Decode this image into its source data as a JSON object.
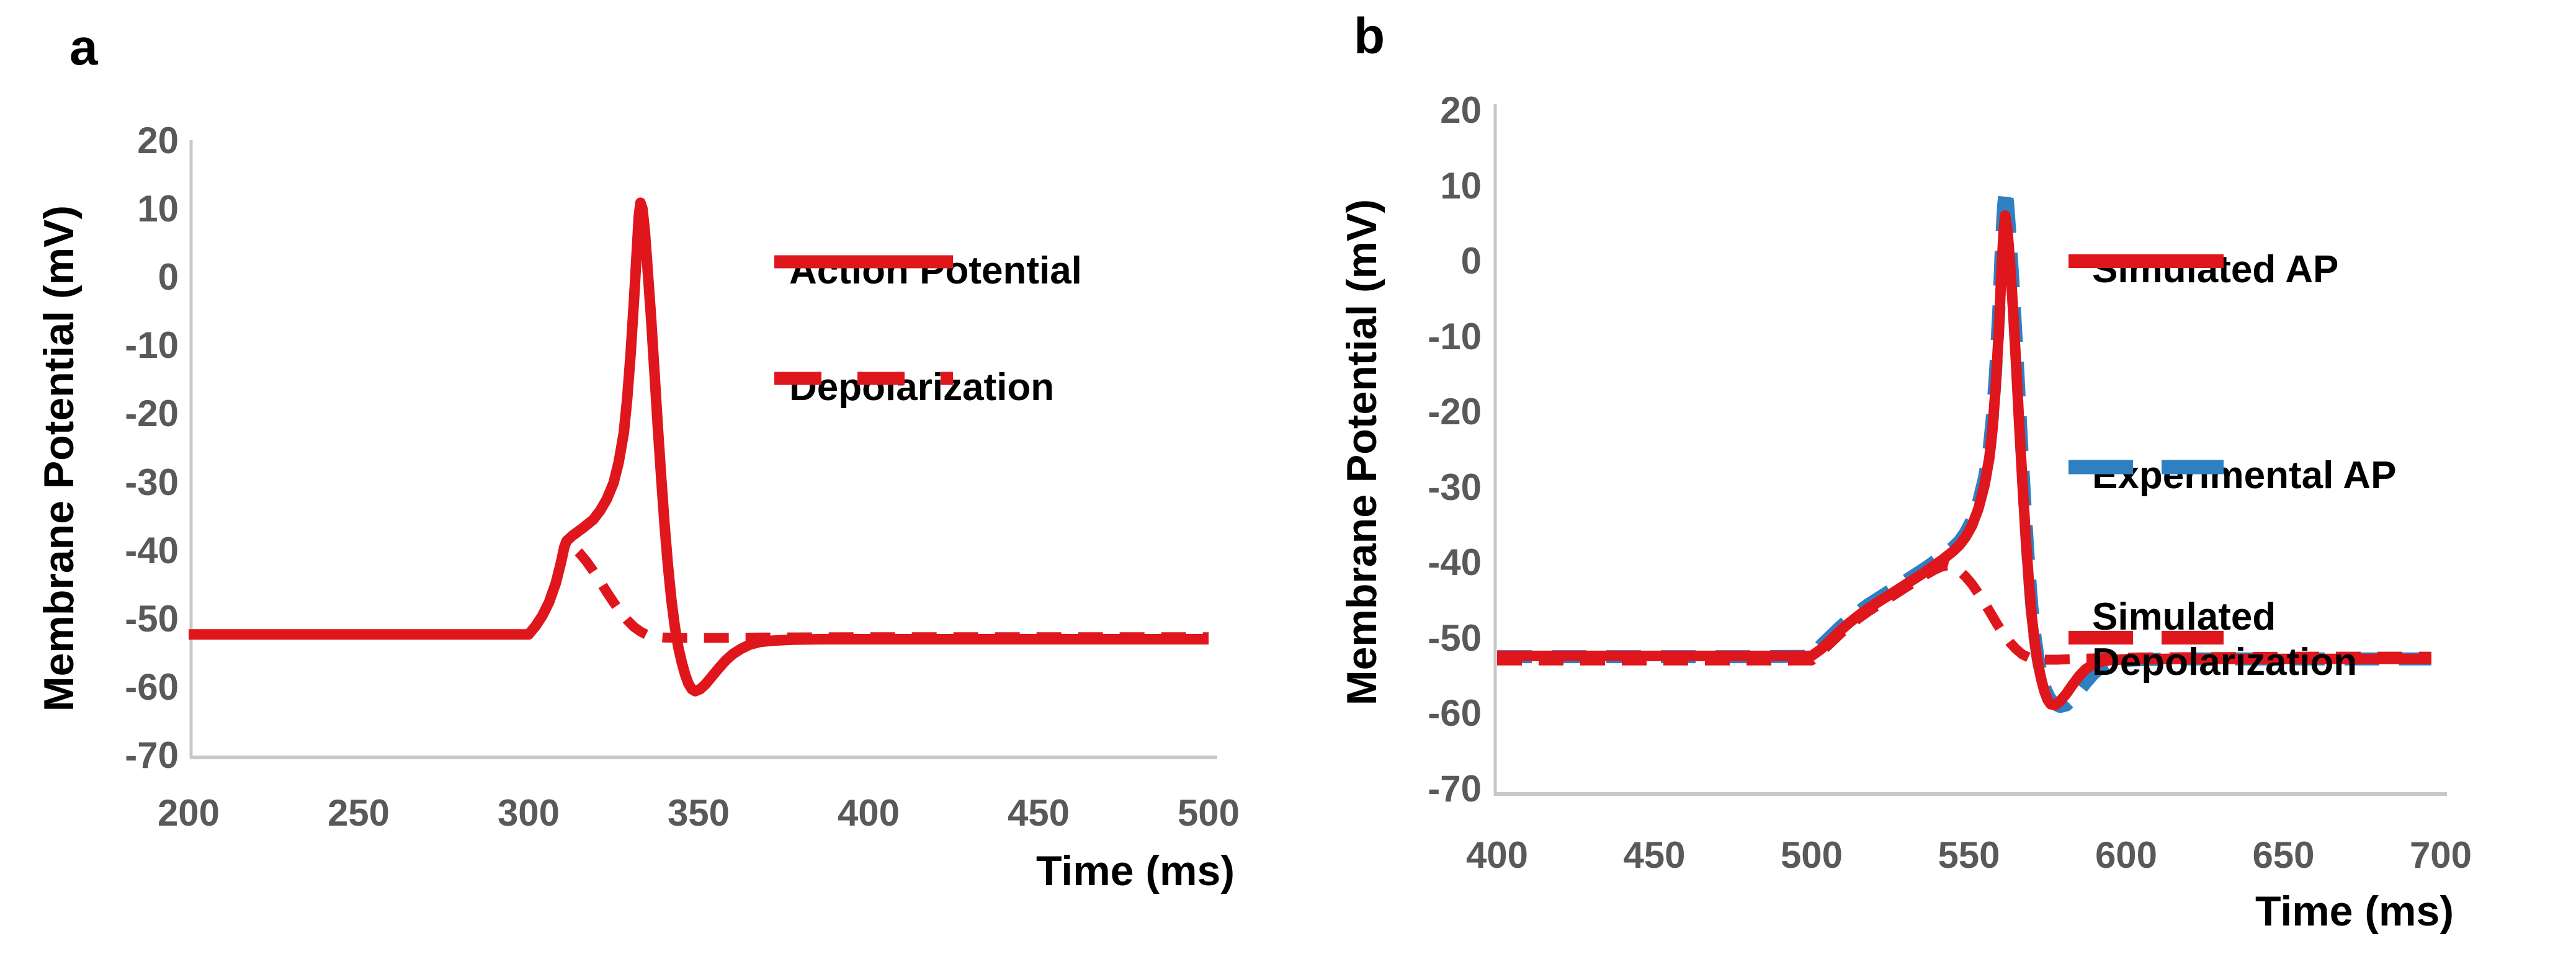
{
  "figure": {
    "panel_a_letter": "a",
    "panel_b_letter": "b"
  },
  "colors": {
    "red": "#df161c",
    "blue": "#2e80c3",
    "tick_text": "#595959",
    "axis_line": "#c8c8c8",
    "label_text": "#000000"
  },
  "chart_data": [
    {
      "id": "a",
      "type": "line",
      "title": "",
      "xlabel": "Time (ms)",
      "ylabel": "Membrane Potential (mV)",
      "xlim": [
        200,
        500
      ],
      "ylim": [
        -70,
        20
      ],
      "grid": false,
      "legend_position": "inside-right",
      "xticks": [
        200,
        250,
        300,
        350,
        400,
        450,
        500
      ],
      "yticks": [
        20,
        10,
        0,
        -10,
        -20,
        -30,
        -40,
        -50,
        -60,
        -70
      ],
      "series": [
        {
          "name": "Action Potential",
          "color": "red",
          "style": "solid",
          "points": [
            [
              200,
              -52
            ],
            [
              240,
              -52
            ],
            [
              280,
              -52
            ],
            [
              300,
              -52
            ],
            [
              302,
              -50.8
            ],
            [
              304,
              -49.3
            ],
            [
              306,
              -47.3
            ],
            [
              308,
              -44.5
            ],
            [
              309.5,
              -41.5
            ],
            [
              310.5,
              -39.2
            ],
            [
              311.2,
              -38.3
            ],
            [
              313,
              -37.5
            ],
            [
              316,
              -36.4
            ],
            [
              319,
              -35.2
            ],
            [
              321,
              -33.9
            ],
            [
              323,
              -32.2
            ],
            [
              325,
              -29.8
            ],
            [
              326.5,
              -26.8
            ],
            [
              328,
              -22.5
            ],
            [
              329,
              -17.5
            ],
            [
              330,
              -11
            ],
            [
              331,
              -3
            ],
            [
              331.8,
              4
            ],
            [
              332.4,
              9.2
            ],
            [
              332.9,
              11.2
            ],
            [
              333.5,
              10.3
            ],
            [
              334.2,
              7
            ],
            [
              335,
              1.5
            ],
            [
              336,
              -5.5
            ],
            [
              337,
              -13.5
            ],
            [
              338,
              -21.5
            ],
            [
              339,
              -29
            ],
            [
              340,
              -36
            ],
            [
              341,
              -42
            ],
            [
              342,
              -47
            ],
            [
              343,
              -50.8
            ],
            [
              344,
              -53.8
            ],
            [
              345,
              -56
            ],
            [
              346,
              -57.8
            ],
            [
              347,
              -59.2
            ],
            [
              348,
              -60
            ],
            [
              349,
              -60.3
            ],
            [
              350.5,
              -60
            ],
            [
              352,
              -59.3
            ],
            [
              354,
              -58.1
            ],
            [
              356,
              -56.9
            ],
            [
              358,
              -55.8
            ],
            [
              360,
              -54.9
            ],
            [
              362.5,
              -54.1
            ],
            [
              365,
              -53.5
            ],
            [
              368,
              -53.1
            ],
            [
              372,
              -52.9
            ],
            [
              378,
              -52.75
            ],
            [
              386,
              -52.7
            ],
            [
              400,
              -52.7
            ],
            [
              430,
              -52.7
            ],
            [
              470,
              -52.7
            ],
            [
              500,
              -52.7
            ]
          ]
        },
        {
          "name": "Depolarization",
          "color": "red",
          "style": "dashed",
          "points": [
            [
              200,
              -52
            ],
            [
              240,
              -52
            ],
            [
              280,
              -52
            ],
            [
              300,
              -52
            ],
            [
              302,
              -50.8
            ],
            [
              304,
              -49.3
            ],
            [
              306,
              -47.3
            ],
            [
              308,
              -44.5
            ],
            [
              309.5,
              -41.5
            ],
            [
              310.5,
              -39.2
            ],
            [
              311.2,
              -38.4
            ],
            [
              313,
              -39.1
            ],
            [
              315,
              -40.1
            ],
            [
              317,
              -41.3
            ],
            [
              319,
              -42.7
            ],
            [
              321,
              -44.2
            ],
            [
              323,
              -45.8
            ],
            [
              325,
              -47.3
            ],
            [
              327,
              -48.7
            ],
            [
              329,
              -49.9
            ],
            [
              331,
              -50.9
            ],
            [
              333,
              -51.6
            ],
            [
              335,
              -52.1
            ],
            [
              337,
              -52.35
            ],
            [
              340,
              -52.45
            ],
            [
              345,
              -52.5
            ],
            [
              355,
              -52.5
            ],
            [
              370,
              -52.45
            ],
            [
              400,
              -52.4
            ],
            [
              440,
              -52.4
            ],
            [
              480,
              -52.4
            ],
            [
              500,
              -52.4
            ]
          ]
        }
      ]
    },
    {
      "id": "b",
      "type": "line",
      "title": "",
      "xlabel": "Time (ms)",
      "ylabel": "Membrane Potential (mV)",
      "xlim": [
        400,
        700
      ],
      "ylim": [
        -70,
        20
      ],
      "grid": false,
      "legend_position": "inside-right",
      "xticks": [
        400,
        450,
        500,
        550,
        600,
        650,
        700
      ],
      "yticks": [
        20,
        10,
        0,
        -10,
        -20,
        -30,
        -40,
        -50,
        -60,
        -70
      ],
      "series": [
        {
          "name": "Simulated AP",
          "color": "red",
          "style": "solid",
          "points": [
            [
              400,
              -52.1
            ],
            [
              440,
              -52.1
            ],
            [
              480,
              -52.1
            ],
            [
              500,
              -52.1
            ],
            [
              503,
              -51.2
            ],
            [
              506,
              -50
            ],
            [
              509,
              -48.8
            ],
            [
              512,
              -47.7
            ],
            [
              515,
              -46.7
            ],
            [
              518,
              -45.8
            ],
            [
              521,
              -45
            ],
            [
              524,
              -44.2
            ],
            [
              527,
              -43.4
            ],
            [
              530,
              -42.6
            ],
            [
              533,
              -41.8
            ],
            [
              536,
              -41
            ],
            [
              539,
              -40.1
            ],
            [
              542,
              -39.2
            ],
            [
              545,
              -38.2
            ],
            [
              547,
              -37.4
            ],
            [
              549,
              -36.3
            ],
            [
              551,
              -34.8
            ],
            [
              553,
              -32.6
            ],
            [
              555,
              -29.4
            ],
            [
              556.5,
              -25.8
            ],
            [
              557.5,
              -22
            ],
            [
              558.5,
              -16.5
            ],
            [
              559.5,
              -9
            ],
            [
              560.3,
              -1.5
            ],
            [
              561,
              4
            ],
            [
              561.5,
              6.3
            ],
            [
              562.2,
              4.5
            ],
            [
              563,
              0.5
            ],
            [
              564,
              -6
            ],
            [
              565,
              -13.5
            ],
            [
              566,
              -21.5
            ],
            [
              567,
              -29
            ],
            [
              568,
              -36
            ],
            [
              569,
              -42
            ],
            [
              570,
              -47
            ],
            [
              571,
              -50.6
            ],
            [
              572,
              -53.2
            ],
            [
              573,
              -55.2
            ],
            [
              574,
              -56.8
            ],
            [
              575,
              -57.9
            ],
            [
              576,
              -58.5
            ],
            [
              577.5,
              -58.6
            ],
            [
              579,
              -58.1
            ],
            [
              581,
              -57.1
            ],
            [
              583,
              -55.9
            ],
            [
              585,
              -54.8
            ],
            [
              587,
              -53.9
            ],
            [
              589.5,
              -53.2
            ],
            [
              592,
              -52.85
            ],
            [
              595,
              -52.65
            ],
            [
              600,
              -52.55
            ],
            [
              610,
              -52.5
            ],
            [
              640,
              -52.5
            ],
            [
              670,
              -52.5
            ],
            [
              697,
              -52.5
            ]
          ]
        },
        {
          "name": "Experimental AP",
          "color": "blue",
          "style": "dashed",
          "points": [
            [
              400,
              -52.2
            ],
            [
              440,
              -52.2
            ],
            [
              480,
              -52.2
            ],
            [
              500,
              -52.15
            ],
            [
              503,
              -50.7
            ],
            [
              506,
              -49.5
            ],
            [
              509,
              -48.3
            ],
            [
              512,
              -47.2
            ],
            [
              515,
              -46.2
            ],
            [
              518,
              -45.3
            ],
            [
              521,
              -44.5
            ],
            [
              524,
              -43.7
            ],
            [
              527,
              -42.9
            ],
            [
              530,
              -42.1
            ],
            [
              533,
              -41.3
            ],
            [
              536,
              -40.5
            ],
            [
              539,
              -39.6
            ],
            [
              542,
              -38.7
            ],
            [
              545,
              -37.7
            ],
            [
              547,
              -36.9
            ],
            [
              549,
              -35.7
            ],
            [
              551,
              -34.1
            ],
            [
              553,
              -31.8
            ],
            [
              555,
              -28.4
            ],
            [
              556.5,
              -24.4
            ],
            [
              557.5,
              -20.2
            ],
            [
              558.5,
              -14.2
            ],
            [
              559.5,
              -6.2
            ],
            [
              560.3,
              2
            ],
            [
              561,
              7.5
            ],
            [
              561.6,
              10
            ],
            [
              562.3,
              8
            ],
            [
              563,
              4
            ],
            [
              564,
              -2.5
            ],
            [
              565,
              -10
            ],
            [
              566,
              -18
            ],
            [
              567,
              -26
            ],
            [
              568,
              -33.5
            ],
            [
              569,
              -40
            ],
            [
              570,
              -45.5
            ],
            [
              571,
              -49.5
            ],
            [
              572,
              -52.4
            ],
            [
              573,
              -54.6
            ],
            [
              574,
              -56.2
            ],
            [
              575.5,
              -57.6
            ],
            [
              577,
              -58.4
            ],
            [
              579,
              -58.8
            ],
            [
              581,
              -58.6
            ],
            [
              583,
              -57.8
            ],
            [
              585,
              -56.8
            ],
            [
              587,
              -55.7
            ],
            [
              589.5,
              -54.5
            ],
            [
              592,
              -53.6
            ],
            [
              595,
              -53
            ],
            [
              599,
              -52.7
            ],
            [
              605,
              -52.6
            ],
            [
              615,
              -52.5
            ],
            [
              645,
              -52.5
            ],
            [
              675,
              -52.5
            ],
            [
              697,
              -52.5
            ]
          ]
        },
        {
          "name": "Simulated Depolarization",
          "label_lines": [
            "Simulated",
            "Depolarization"
          ],
          "color": "red",
          "style": "dashed",
          "points": [
            [
              400,
              -52.7
            ],
            [
              440,
              -52.7
            ],
            [
              480,
              -52.7
            ],
            [
              500,
              -52.7
            ],
            [
              503,
              -51.6
            ],
            [
              506,
              -50.4
            ],
            [
              509,
              -49.2
            ],
            [
              512,
              -48.1
            ],
            [
              515,
              -47.1
            ],
            [
              518,
              -46.2
            ],
            [
              521,
              -45.4
            ],
            [
              524,
              -44.6
            ],
            [
              527,
              -43.8
            ],
            [
              530,
              -43
            ],
            [
              533,
              -42.2
            ],
            [
              536,
              -41.4
            ],
            [
              539,
              -40.7
            ],
            [
              541,
              -40.3
            ],
            [
              543,
              -40.1
            ],
            [
              545,
              -40.3
            ],
            [
              547,
              -40.8
            ],
            [
              549,
              -41.6
            ],
            [
              551,
              -42.6
            ],
            [
              553,
              -43.8
            ],
            [
              555,
              -45.1
            ],
            [
              557,
              -46.5
            ],
            [
              559,
              -47.9
            ],
            [
              561,
              -49.2
            ],
            [
              563,
              -50.3
            ],
            [
              565,
              -51.2
            ],
            [
              567,
              -51.9
            ],
            [
              569,
              -52.3
            ],
            [
              571,
              -52.5
            ],
            [
              574,
              -52.6
            ],
            [
              578,
              -52.6
            ],
            [
              584,
              -52.5
            ],
            [
              592,
              -52.4
            ],
            [
              605,
              -52.3
            ],
            [
              630,
              -52.25
            ],
            [
              660,
              -52.2
            ],
            [
              697,
              -52.2
            ]
          ]
        }
      ]
    }
  ]
}
